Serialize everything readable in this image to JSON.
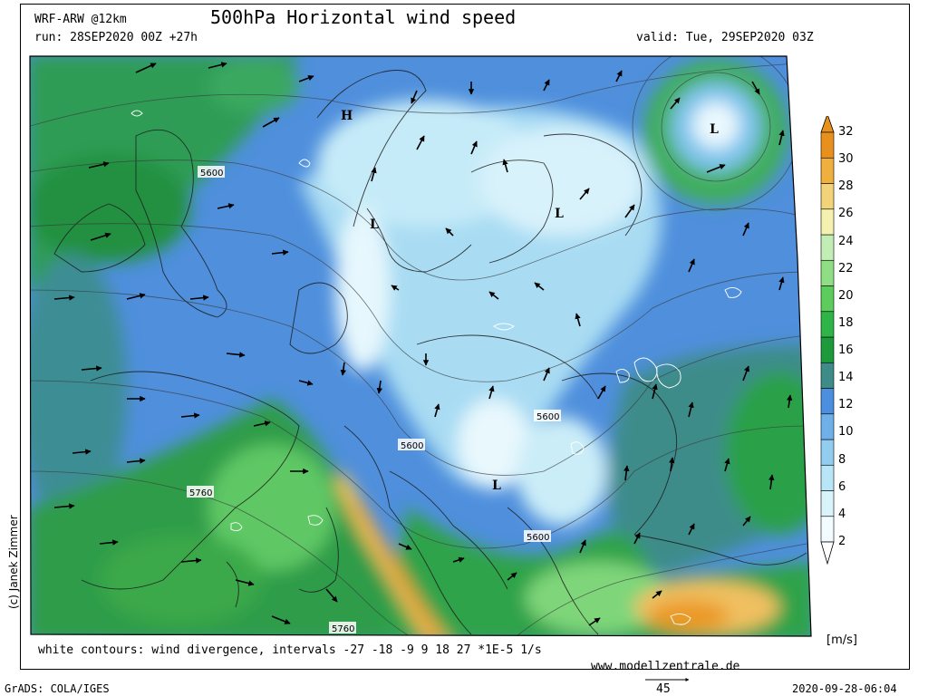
{
  "header": {
    "model": "WRF-ARW @12km",
    "title": "500hPa Horizontal wind speed",
    "run": "run: 28SEP2020 00Z +27h",
    "valid": "valid: Tue, 29SEP2020 03Z"
  },
  "footer": {
    "divergence_note": "white contours: wind divergence, intervals -27 -18 -9 9 18 27 *1E-5 1/s",
    "website": "www.modellzentrale.de",
    "grads": "GrADS: COLA/IGES",
    "timestamp": "2020-09-28-06:04",
    "vector_ref_value": "45",
    "copyright": "(c) Janek Zimmer"
  },
  "colorbar": {
    "unit": "[m/s]",
    "levels": [
      "2",
      "4",
      "6",
      "8",
      "10",
      "12",
      "14",
      "16",
      "18",
      "20",
      "22",
      "24",
      "26",
      "28",
      "30",
      "32"
    ],
    "colors": [
      "#f2fbff",
      "#d9f3fb",
      "#b8e6f6",
      "#92cdf0",
      "#6fb0e8",
      "#4c8fde",
      "#3e8c8a",
      "#1e9a3c",
      "#2fb447",
      "#5ccc5c",
      "#8fde86",
      "#c2eeb6",
      "#f4f0b0",
      "#f2d37a",
      "#f0b040",
      "#e8901e"
    ]
  },
  "map": {
    "pressure_labels": [
      "5600",
      "5600",
      "5600",
      "5760",
      "5600",
      "5760"
    ],
    "low_labels": [
      "L",
      "L",
      "L",
      "L"
    ],
    "high_labels": [
      "H"
    ]
  }
}
